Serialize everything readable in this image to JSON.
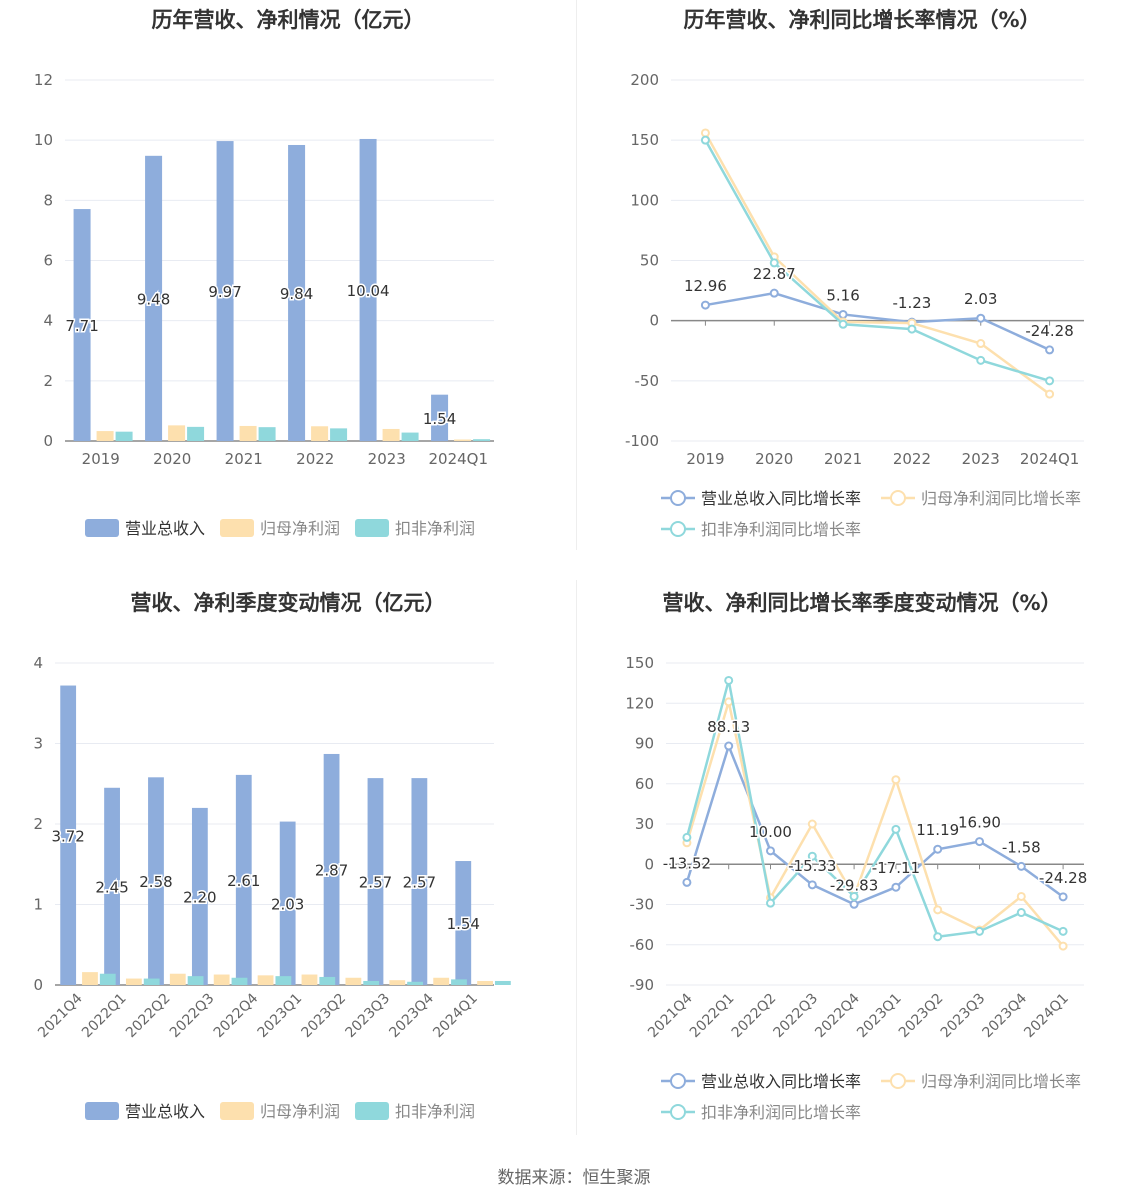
{
  "colors": {
    "revenue": "#8eaddc",
    "net_profit": "#fde0ae",
    "deducted_profit": "#8fd8dc",
    "grid": "#e8ebf2",
    "axis": "#888888",
    "tick_text": "#666666",
    "label_text": "#333333"
  },
  "source": "数据来源：恒生聚源",
  "chart_data": [
    {
      "id": "annual_amounts",
      "type": "bar",
      "title": "历年营收、净利情况（亿元）",
      "categories": [
        "2019",
        "2020",
        "2021",
        "2022",
        "2023",
        "2024Q1"
      ],
      "ylim": [
        0,
        12
      ],
      "yticks": [
        0,
        2,
        4,
        6,
        8,
        10,
        12
      ],
      "grid": true,
      "legend_position": "bottom",
      "series": [
        {
          "name": "营业总收入",
          "values": [
            7.71,
            9.48,
            9.97,
            9.84,
            10.04,
            1.54
          ],
          "labels": [
            "7.71",
            "9.48",
            "9.97",
            "9.84",
            "10.04",
            "1.54"
          ]
        },
        {
          "name": "归母净利润",
          "values": [
            0.33,
            0.52,
            0.5,
            0.49,
            0.4,
            0.05
          ]
        },
        {
          "name": "扣非净利润",
          "values": [
            0.31,
            0.47,
            0.46,
            0.42,
            0.28,
            0.06
          ]
        }
      ]
    },
    {
      "id": "annual_growth",
      "type": "line",
      "title": "历年营收、净利同比增长率情况（%）",
      "categories": [
        "2019",
        "2020",
        "2021",
        "2022",
        "2023",
        "2024Q1"
      ],
      "ylim": [
        -100,
        200
      ],
      "yticks": [
        -100,
        -50,
        0,
        50,
        100,
        150,
        200
      ],
      "grid": true,
      "legend_position": "bottom",
      "series": [
        {
          "name": "营业总收入同比增长率",
          "values": [
            12.96,
            22.87,
            5.16,
            -1.23,
            2.03,
            -24.28
          ],
          "labels": [
            "12.96",
            "22.87",
            "5.16",
            "-1.23",
            "2.03",
            "-24.28"
          ]
        },
        {
          "name": "归母净利润同比增长率",
          "values": [
            156,
            53,
            -1,
            -2,
            -19,
            -61
          ]
        },
        {
          "name": "扣非净利润同比增长率",
          "values": [
            150,
            48,
            -3,
            -7,
            -33,
            -50
          ]
        }
      ]
    },
    {
      "id": "quarterly_amounts",
      "type": "bar",
      "title": "营收、净利季度变动情况（亿元）",
      "categories": [
        "2021Q4",
        "2022Q1",
        "2022Q2",
        "2022Q3",
        "2022Q4",
        "2023Q1",
        "2023Q2",
        "2023Q3",
        "2023Q4",
        "2024Q1"
      ],
      "ylim": [
        0,
        4
      ],
      "yticks": [
        0,
        1,
        2,
        3,
        4
      ],
      "grid": true,
      "legend_position": "bottom",
      "series": [
        {
          "name": "营业总收入",
          "values": [
            3.72,
            2.45,
            2.58,
            2.2,
            2.61,
            2.03,
            2.87,
            2.57,
            2.57,
            1.54
          ],
          "labels": [
            "3.72",
            "2.45",
            "2.58",
            "2.20",
            "2.61",
            "2.03",
            "2.87",
            "2.57",
            "2.57",
            "1.54"
          ]
        },
        {
          "name": "归母净利润",
          "values": [
            0.16,
            0.08,
            0.14,
            0.13,
            0.12,
            0.13,
            0.09,
            0.06,
            0.09,
            0.05
          ]
        },
        {
          "name": "扣非净利润",
          "values": [
            0.14,
            0.08,
            0.11,
            0.09,
            0.11,
            0.1,
            0.05,
            0.04,
            0.07,
            0.05
          ]
        }
      ]
    },
    {
      "id": "quarterly_growth",
      "type": "line",
      "title": "营收、净利同比增长率季度变动情况（%）",
      "categories": [
        "2021Q4",
        "2022Q1",
        "2022Q2",
        "2022Q3",
        "2022Q4",
        "2023Q1",
        "2023Q2",
        "2023Q3",
        "2023Q4",
        "2024Q1"
      ],
      "ylim": [
        -90,
        150
      ],
      "yticks": [
        -90,
        -60,
        -30,
        0,
        30,
        60,
        90,
        120,
        150
      ],
      "grid": true,
      "legend_position": "bottom",
      "series": [
        {
          "name": "营业总收入同比增长率",
          "values": [
            -13.52,
            88.13,
            10.0,
            -15.33,
            -29.83,
            -17.11,
            11.19,
            16.9,
            -1.58,
            -24.28
          ],
          "labels": [
            "-13.52",
            "88.13",
            "10.00",
            "-15.33",
            "-29.83",
            "-17.11",
            "11.19",
            "16.90",
            "-1.58",
            "-24.28"
          ]
        },
        {
          "name": "归母净利润同比增长率",
          "values": [
            16,
            121,
            -25,
            30,
            -24,
            63,
            -34,
            -49,
            -24,
            -61
          ]
        },
        {
          "name": "扣非净利润同比增长率",
          "values": [
            20,
            137,
            -29,
            6,
            -24,
            26,
            -54,
            -50,
            -36,
            -50
          ]
        }
      ]
    }
  ]
}
